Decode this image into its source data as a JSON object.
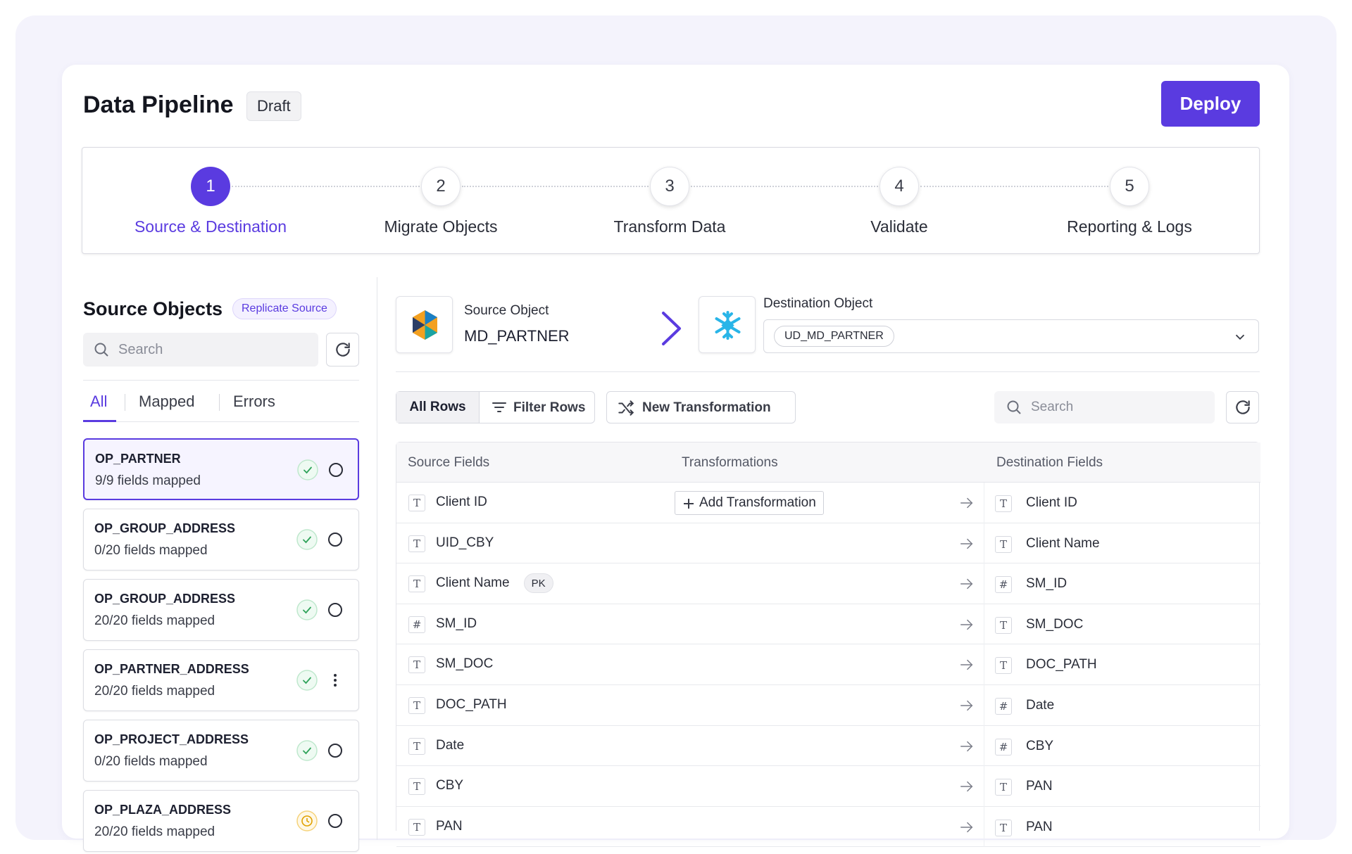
{
  "header": {
    "title": "Data Pipeline",
    "status": "Draft",
    "action": "Deploy"
  },
  "steps": [
    {
      "number": "1",
      "label": "Source & Destination"
    },
    {
      "number": "2",
      "label": "Migrate Objects"
    },
    {
      "number": "3",
      "label": "Transform Data"
    },
    {
      "number": "4",
      "label": "Validate"
    },
    {
      "number": "5",
      "label": "Reporting & Logs"
    }
  ],
  "source_panel": {
    "title": "Source Objects",
    "badge": "Replicate Source",
    "search_placeholder": "Search",
    "tabs": [
      "All",
      "Mapped",
      "Errors"
    ],
    "objects": [
      {
        "name": "OP_PARTNER",
        "status": "9/9 fields mapped"
      },
      {
        "name": "OP_GROUP_ADDRESS",
        "status": "0/20 fields mapped"
      },
      {
        "name": "OP_GROUP_ADDRESS",
        "status": "20/20 fields mapped"
      },
      {
        "name": "OP_PARTNER_ADDRESS",
        "status": "20/20 fields mapped"
      },
      {
        "name": "OP_PROJECT_ADDRESS",
        "status": "0/20 fields mapped"
      },
      {
        "name": "OP_PLAZA_ADDRESS",
        "status": "20/20 fields mapped"
      }
    ]
  },
  "mapping": {
    "source_label": "Source Object",
    "source_value": "MD_PARTNER",
    "destination_label": "Destination Object",
    "destination_value": "UD_MD_PARTNER",
    "toolbar": {
      "all_rows": "All Rows",
      "filter_rows": "Filter Rows",
      "new_transformation": "New Transformation",
      "search_placeholder": "Search"
    },
    "columns": [
      "Source Fields",
      "Transformations",
      "Destination Fields"
    ],
    "rows": [
      {
        "source": "Client ID",
        "source_type": "T",
        "transformation": "Add Transformation",
        "destination": "Client ID",
        "destination_type": "T"
      },
      {
        "source": "UID_CBY",
        "source_type": "T",
        "destination": "Client Name",
        "destination_type": "T"
      },
      {
        "source": "Client Name",
        "source_type": "T",
        "badge": "PK",
        "destination": "SM_ID",
        "destination_type": "#"
      },
      {
        "source": "SM_ID",
        "source_type": "#",
        "destination": "SM_DOC",
        "destination_type": "T"
      },
      {
        "source": "SM_DOC",
        "source_type": "T",
        "destination": "DOC_PATH",
        "destination_type": "T"
      },
      {
        "source": "DOC_PATH",
        "source_type": "T",
        "destination": "Date",
        "destination_type": "#"
      },
      {
        "source": "Date",
        "source_type": "T",
        "destination": "CBY",
        "destination_type": "#"
      },
      {
        "source": "CBY",
        "source_type": "T",
        "destination": "PAN",
        "destination_type": "T"
      },
      {
        "source": "PAN",
        "source_type": "T",
        "destination": "PAN",
        "destination_type": "T"
      }
    ]
  }
}
